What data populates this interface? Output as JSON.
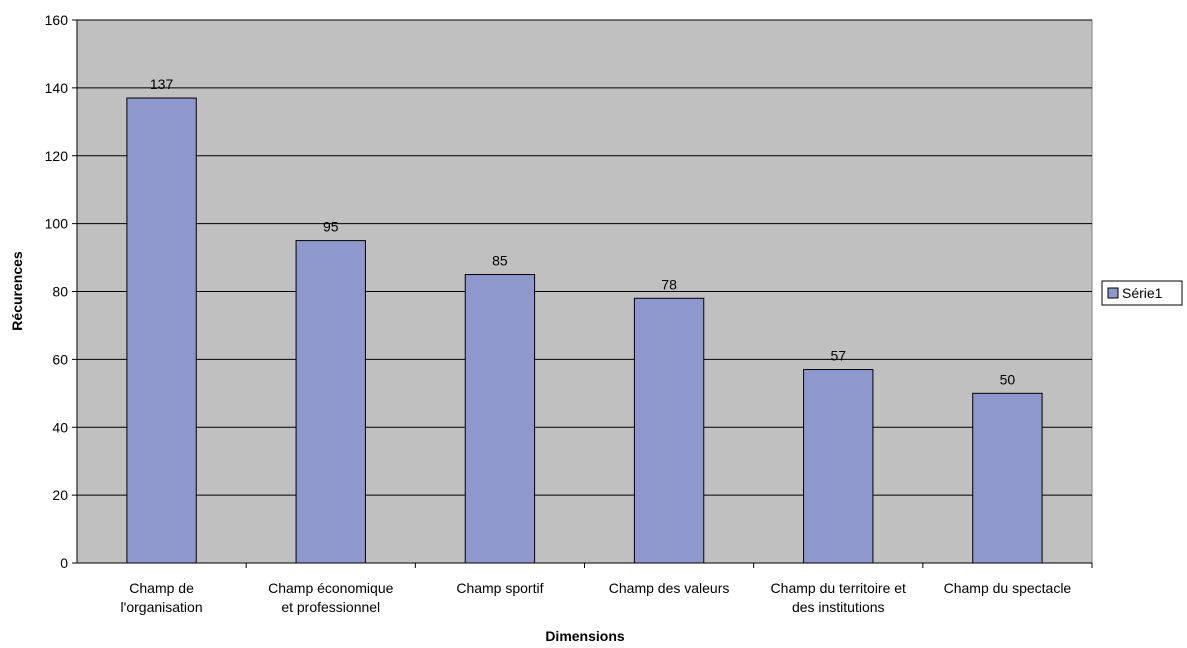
{
  "chart_data": {
    "type": "bar",
    "categories": [
      [
        "Champ de",
        "l'organisation"
      ],
      [
        "Champ économique",
        "et professionnel"
      ],
      [
        "Champ sportif"
      ],
      [
        "Champ des valeurs"
      ],
      [
        "Champ du territoire et",
        "des institutions"
      ],
      [
        "Champ du spectacle"
      ]
    ],
    "series": [
      {
        "name": "Série1",
        "values": [
          137,
          95,
          85,
          78,
          57,
          50
        ],
        "color": "#8e98cd"
      }
    ],
    "xlabel": "Dimensions",
    "ylabel": "Récurences",
    "ylim": [
      0,
      160
    ],
    "yticks": [
      0,
      20,
      40,
      60,
      80,
      100,
      120,
      140,
      160
    ],
    "grid": true,
    "legend_position": "right",
    "plot_background": "#c0c0c0",
    "data_labels": true
  }
}
